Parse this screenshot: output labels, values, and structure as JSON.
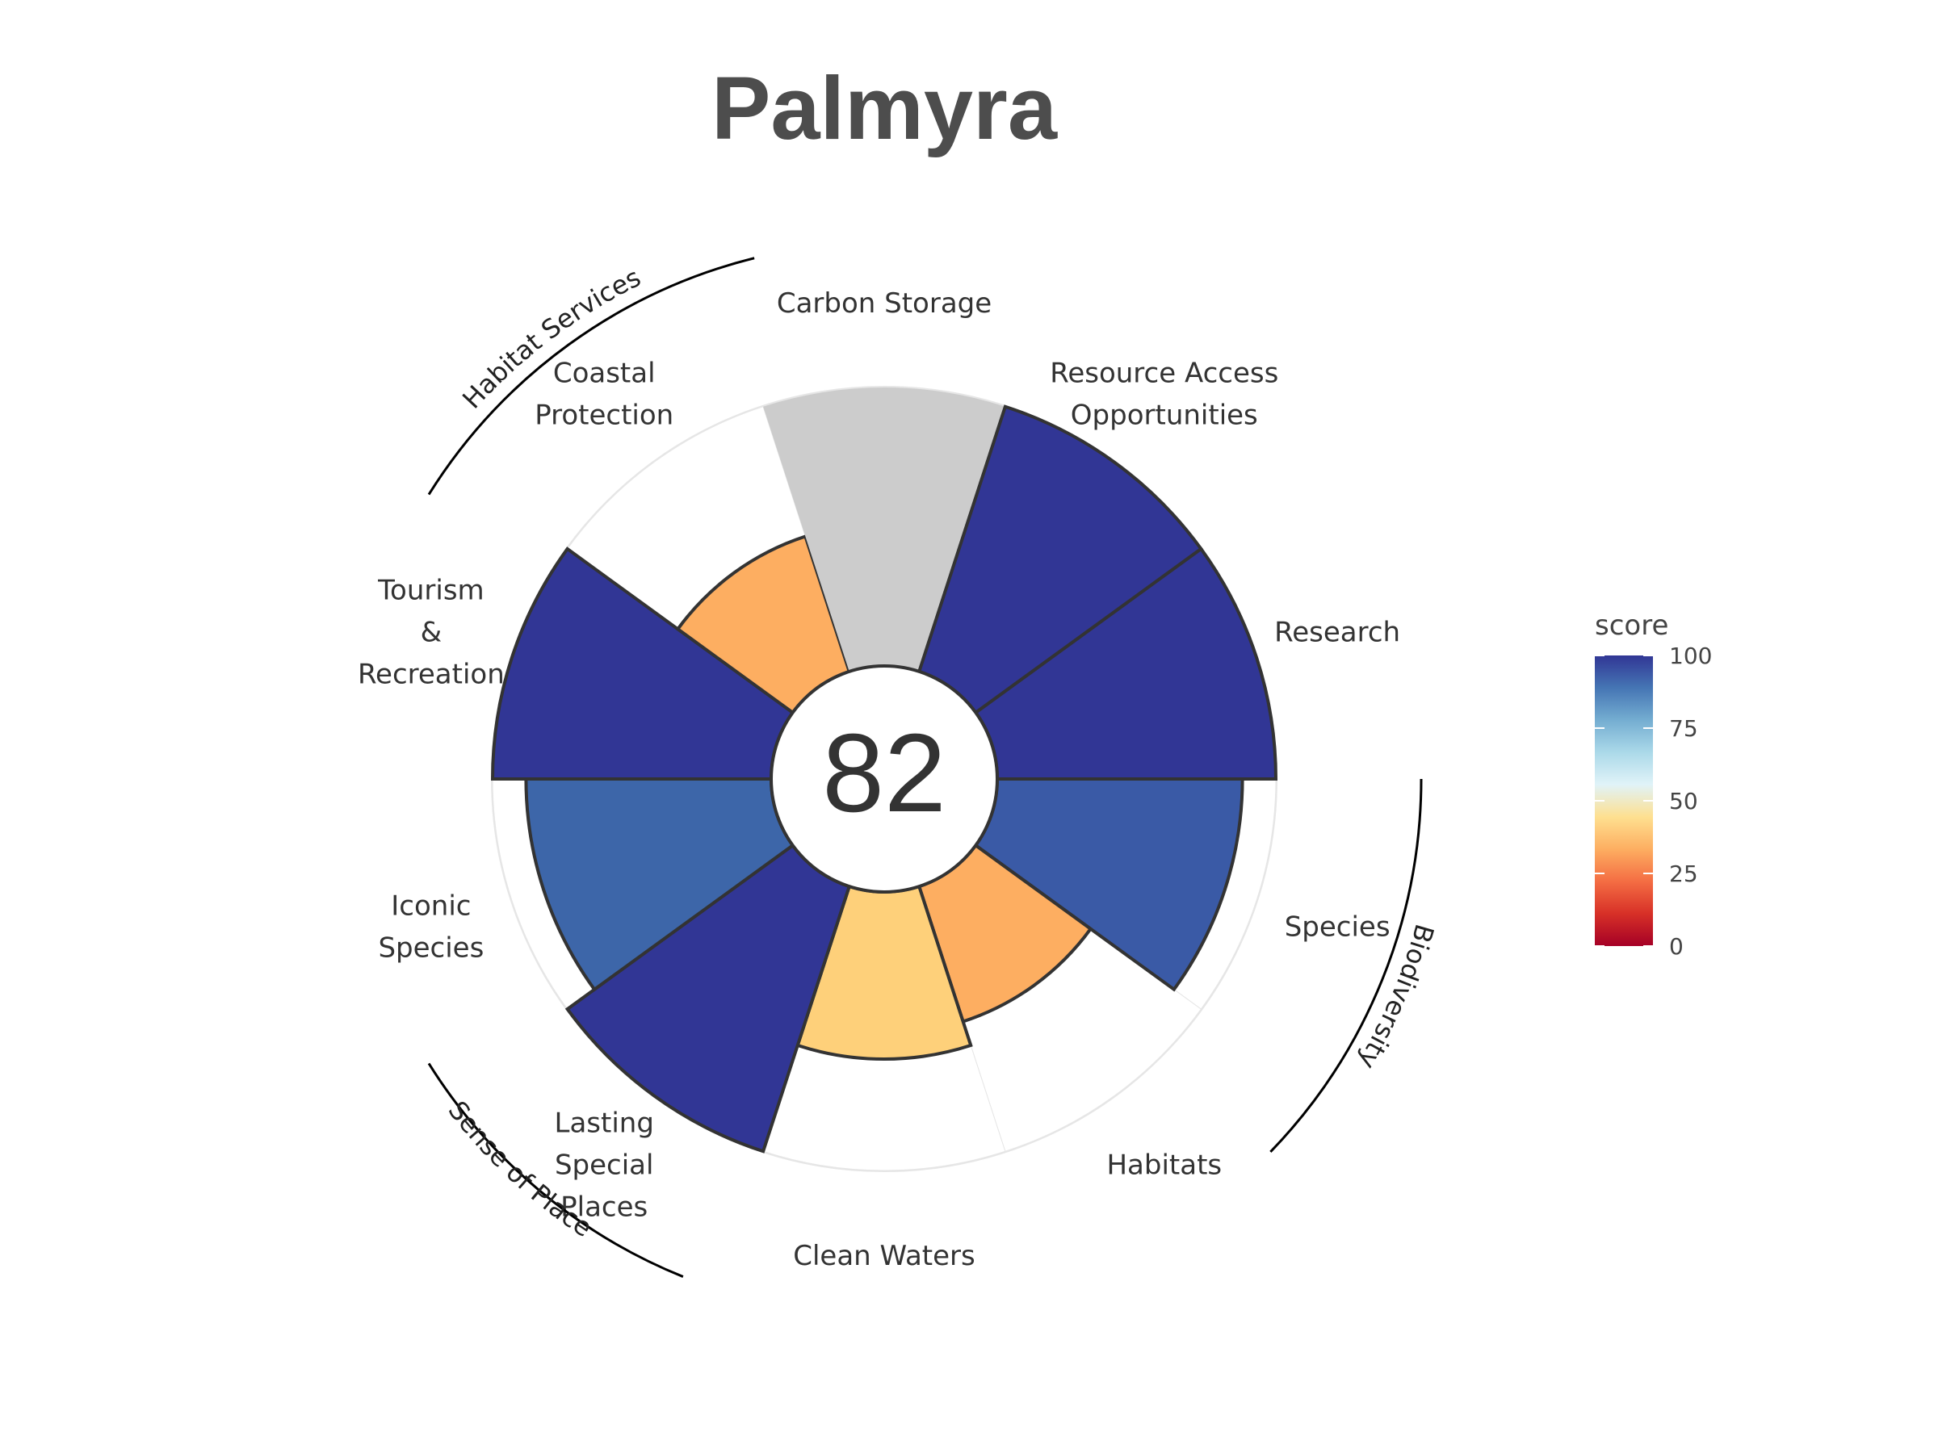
{
  "chart_data": {
    "type": "polar-bar",
    "title": "Palmyra",
    "overall_score": "82",
    "value_range": [
      0,
      100
    ],
    "goals": [
      {
        "label": [
          "Research"
        ],
        "value": 100,
        "color": "#313695"
      },
      {
        "label": [
          "Species"
        ],
        "value": 88,
        "color": "#3a5aa6"
      },
      {
        "label": [
          "Habitats"
        ],
        "value": 51,
        "color": "#fdae61"
      },
      {
        "label": [
          "Clean Waters"
        ],
        "value": 60,
        "color": "#fed07a"
      },
      {
        "label": [
          "Lasting",
          "Special",
          "Places"
        ],
        "value": 100,
        "color": "#313695"
      },
      {
        "label": [
          "Iconic",
          "Species"
        ],
        "value": 88,
        "color": "#3d66a9"
      },
      {
        "label": [
          "Tourism",
          "&",
          "Recreation"
        ],
        "value": 100,
        "color": "#313695"
      },
      {
        "label": [
          "Coastal",
          "Protection"
        ],
        "value": 51,
        "color": "#fdae61"
      },
      {
        "label": [
          "Carbon Storage"
        ],
        "value": null,
        "color": "#cccccc"
      },
      {
        "label": [
          "Resource Access",
          "Opportunities"
        ],
        "value": 100,
        "color": "#313695"
      }
    ],
    "groups": [
      {
        "name": "Habitat Services"
      },
      {
        "name": "Biodiversity"
      },
      {
        "name": "Sense of Place"
      }
    ],
    "legend": {
      "title": "score",
      "ticks": [
        "100",
        "75",
        "50",
        "25",
        "0"
      ],
      "colors": [
        "#a50026",
        "#d73027",
        "#f46d43",
        "#fdae61",
        "#fee090",
        "#e0f3f8",
        "#abd9e9",
        "#74add1",
        "#4575b4",
        "#313695"
      ]
    }
  }
}
